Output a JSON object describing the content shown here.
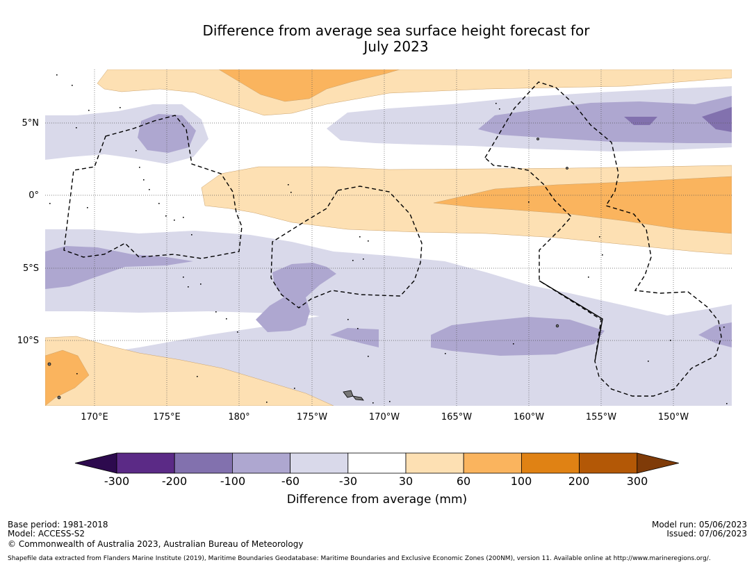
{
  "title": {
    "line1": "Difference from average sea surface height forecast for",
    "line2": "July 2023"
  },
  "map": {
    "lat_labels": [
      "5°N",
      "0°",
      "5°S",
      "10°S"
    ],
    "lon_labels": [
      "170°E",
      "175°E",
      "180°",
      "175°W",
      "170°W",
      "165°W",
      "160°W",
      "155°W",
      "150°W"
    ],
    "extent": {
      "lon_min": 166.6,
      "lon_max": 214.1,
      "lat_min": -14.4,
      "lat_max": 8.8
    }
  },
  "colorbar": {
    "title": "Difference from average (mm)",
    "tick_labels": [
      "-300",
      "-200",
      "-100",
      "-60",
      "-30",
      "30",
      "60",
      "100",
      "200",
      "300"
    ],
    "colors": [
      "#2d0a4e",
      "#5b2a86",
      "#8271ae",
      "#aea7d0",
      "#d9d9ea",
      "#ffffff",
      "#fde0b3",
      "#fab45e",
      "#e08214",
      "#b35806",
      "#7f3b08"
    ]
  },
  "footer": {
    "base_period": "Base period: 1981-2018",
    "model": "Model: ACCESS-S2",
    "model_run": "Model run: 05/06/2023",
    "issued": "Issued: 07/06/2023",
    "copyright": "© Commonwealth of Australia 2023, Australian Bureau of Meteorology",
    "shapefile": "Shapefile data extracted from Flanders Marine Institute (2019), Maritime Boundaries Geodatabase: Maritime Boundaries and Exclusive Economic Zones (200NM), version 11. Available online at http://www.marineregions.org/."
  }
}
